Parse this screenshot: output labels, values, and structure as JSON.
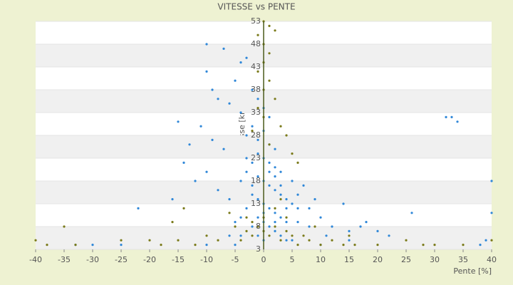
{
  "chart_data": {
    "type": "scatter",
    "title": "VITESSE vs PENTE",
    "xlabel": "Pente [%]",
    "ylabel": "Vitesse [km/h]",
    "xlim": [
      -40,
      40
    ],
    "xticks": [
      -40,
      -35,
      -30,
      -25,
      -20,
      -15,
      -10,
      -5,
      0,
      5,
      10,
      15,
      20,
      25,
      30,
      35,
      40
    ],
    "ylim": [
      3,
      53
    ],
    "yticks": [
      53,
      48,
      43,
      38,
      33,
      28,
      23,
      18,
      13,
      8,
      3
    ],
    "series": [
      {
        "color": "#2f87d8",
        "x": [
          -10,
          -10,
          -7,
          -9,
          -8,
          -5,
          -4,
          -3,
          -6,
          -4,
          -2,
          -1,
          0,
          1,
          -2,
          -3,
          -1,
          0,
          1,
          2,
          -1,
          0,
          1,
          2,
          3,
          -2,
          -3,
          -4,
          -1,
          0,
          1,
          2,
          3,
          4,
          5,
          6,
          -2,
          -1,
          0,
          1,
          2,
          3,
          4,
          -3,
          -4,
          -5,
          -1,
          0,
          1,
          2,
          -2,
          3,
          4,
          -6,
          -8,
          -10,
          -12,
          -14,
          -16,
          -7,
          -9,
          -11,
          5,
          6,
          7,
          8,
          9,
          10,
          12,
          14,
          15,
          18,
          20,
          22,
          26,
          32,
          33,
          34,
          40,
          40,
          -22,
          -25,
          -30,
          -33,
          -10,
          -5,
          0,
          5,
          10,
          38,
          39,
          -13,
          -15,
          -3,
          2,
          -2,
          1,
          3,
          4,
          -1,
          0,
          2,
          -4,
          6,
          8,
          -6,
          11,
          15,
          17
        ],
        "values": [
          48,
          42,
          47,
          38,
          36,
          40,
          44,
          45,
          35,
          33,
          38,
          36,
          34,
          32,
          30,
          28,
          27,
          29,
          26,
          25,
          24,
          23,
          22,
          21,
          20,
          22,
          20,
          18,
          19,
          18,
          17,
          16,
          15,
          14,
          13,
          12,
          15,
          14,
          13,
          12,
          11,
          10,
          9,
          12,
          10,
          9,
          10,
          9,
          8,
          7,
          8,
          6,
          5,
          14,
          16,
          20,
          18,
          22,
          14,
          25,
          27,
          30,
          18,
          15,
          17,
          12,
          14,
          10,
          8,
          13,
          7,
          9,
          7,
          6,
          11,
          32,
          32,
          31,
          11,
          18,
          12,
          4,
          4,
          4,
          4,
          4,
          5,
          5,
          4,
          4,
          5,
          26,
          31,
          23,
          19,
          17,
          20,
          17,
          12,
          6,
          11,
          9,
          6,
          9,
          8,
          6,
          6,
          5,
          8
        ]
      },
      {
        "color": "#7a7a1a",
        "x": [
          0,
          1,
          2,
          -1,
          0,
          1,
          0,
          -1,
          1,
          0,
          2,
          -1,
          0,
          3,
          4,
          -2,
          1,
          5,
          6,
          -3,
          -2,
          -1,
          0,
          1,
          2,
          3,
          4,
          -4,
          -5,
          5,
          6,
          8,
          10,
          12,
          14,
          -8,
          -10,
          -12,
          -15,
          -16,
          -18,
          -20,
          -25,
          -35,
          -40,
          -38,
          -33,
          16,
          20,
          25,
          28,
          30,
          35,
          40,
          -14,
          -6,
          -3,
          2,
          3,
          -2,
          0,
          4,
          7,
          9,
          15
        ],
        "values": [
          53,
          52,
          51,
          50,
          48,
          46,
          44,
          42,
          40,
          38,
          36,
          34,
          32,
          30,
          28,
          29,
          26,
          24,
          22,
          7,
          6,
          8,
          7,
          6,
          8,
          5,
          7,
          5,
          8,
          6,
          4,
          5,
          4,
          5,
          4,
          5,
          6,
          4,
          5,
          9,
          4,
          5,
          5,
          8,
          5,
          4,
          4,
          4,
          4,
          5,
          4,
          4,
          4,
          5,
          12,
          11,
          10,
          12,
          14,
          9,
          10,
          10,
          6,
          8,
          6
        ]
      }
    ]
  }
}
